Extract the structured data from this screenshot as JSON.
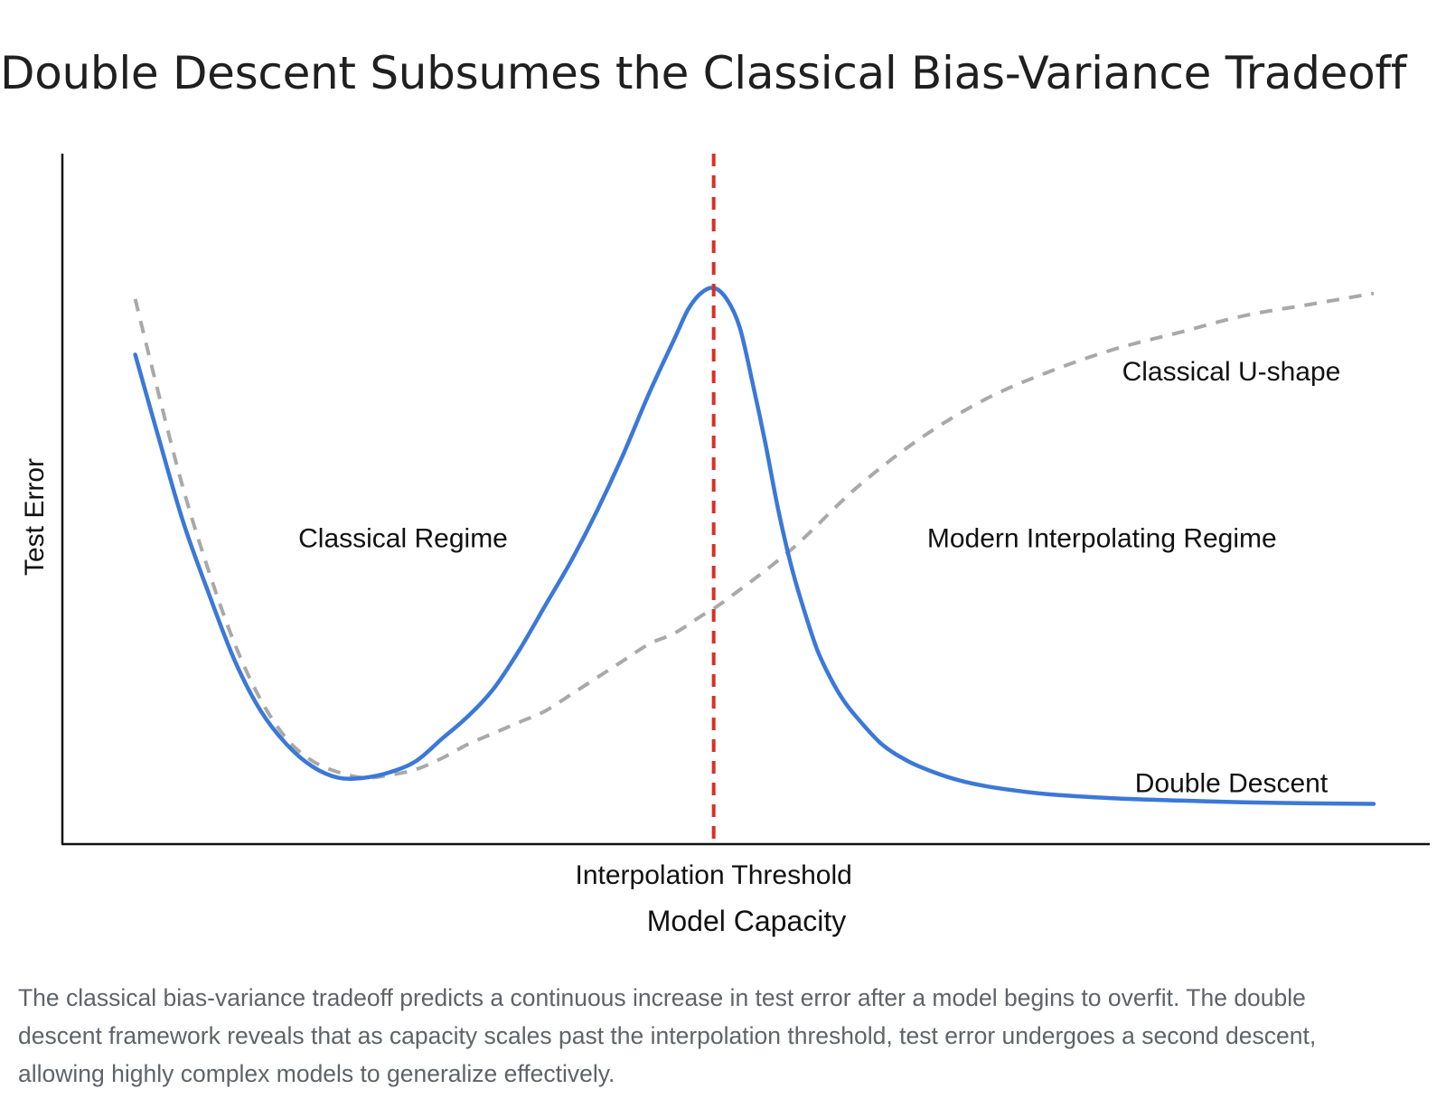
{
  "title": "Double Descent Subsumes the Classical Bias-Variance Tradeoff",
  "caption": "The classical bias-variance tradeoff predicts a continuous increase in test error after a model begins to overfit. The double descent framework reveals that as capacity scales past the interpolation threshold, test error undergoes a second descent, allowing highly complex models to generalize effectively.",
  "chart_data": {
    "type": "line",
    "xlabel": "Model Capacity",
    "ylabel": "Test Error",
    "xlim": [
      0,
      1
    ],
    "ylim": [
      0,
      1
    ],
    "grid": false,
    "threshold": {
      "x": 0.49,
      "label": "Interpolation Threshold",
      "color": "#d93025"
    },
    "annotations": [
      {
        "text": "Classical Regime",
        "x": 0.25,
        "y": 0.52
      },
      {
        "text": "Modern Interpolating Regime",
        "x": 0.79,
        "y": 0.52
      },
      {
        "text": "Classical U-shape",
        "x": 0.89,
        "y": 0.82
      },
      {
        "text": "Double Descent",
        "x": 0.89,
        "y": 0.08
      }
    ],
    "series": [
      {
        "name": "Double Descent",
        "color": "#3b78d8",
        "style": "solid",
        "x": [
          0.043,
          0.06,
          0.08,
          0.1,
          0.12,
          0.14,
          0.16,
          0.18,
          0.2,
          0.22,
          0.24,
          0.26,
          0.28,
          0.3,
          0.32,
          0.34,
          0.36,
          0.38,
          0.4,
          0.42,
          0.44,
          0.46,
          0.47,
          0.48,
          0.49,
          0.5,
          0.51,
          0.52,
          0.53,
          0.54,
          0.55,
          0.56,
          0.57,
          0.58,
          0.59,
          0.6,
          0.62,
          0.64,
          0.66,
          0.68,
          0.7,
          0.72,
          0.75,
          0.8,
          0.85,
          0.9,
          0.95,
          1.0
        ],
        "y": [
          0.85,
          0.71,
          0.55,
          0.42,
          0.3,
          0.21,
          0.15,
          0.11,
          0.09,
          0.09,
          0.1,
          0.12,
          0.16,
          0.2,
          0.25,
          0.32,
          0.4,
          0.48,
          0.57,
          0.67,
          0.78,
          0.88,
          0.93,
          0.96,
          0.97,
          0.95,
          0.9,
          0.8,
          0.69,
          0.57,
          0.47,
          0.39,
          0.32,
          0.27,
          0.23,
          0.2,
          0.15,
          0.12,
          0.1,
          0.085,
          0.075,
          0.068,
          0.06,
          0.053,
          0.049,
          0.046,
          0.044,
          0.043
        ]
      },
      {
        "name": "Classical U-shape",
        "color": "#a9a9a9",
        "style": "dashed",
        "x": [
          0.043,
          0.06,
          0.08,
          0.1,
          0.12,
          0.14,
          0.16,
          0.18,
          0.2,
          0.22,
          0.24,
          0.26,
          0.28,
          0.3,
          0.32,
          0.34,
          0.36,
          0.38,
          0.4,
          0.42,
          0.44,
          0.46,
          0.48,
          0.5,
          0.55,
          0.6,
          0.65,
          0.7,
          0.75,
          0.8,
          0.85,
          0.9,
          0.95,
          1.0
        ],
        "y": [
          0.95,
          0.79,
          0.61,
          0.46,
          0.33,
          0.23,
          0.16,
          0.12,
          0.1,
          0.09,
          0.095,
          0.105,
          0.125,
          0.15,
          0.17,
          0.19,
          0.21,
          0.24,
          0.27,
          0.3,
          0.33,
          0.35,
          0.38,
          0.41,
          0.5,
          0.61,
          0.7,
          0.77,
          0.82,
          0.86,
          0.89,
          0.92,
          0.94,
          0.96
        ]
      }
    ]
  }
}
